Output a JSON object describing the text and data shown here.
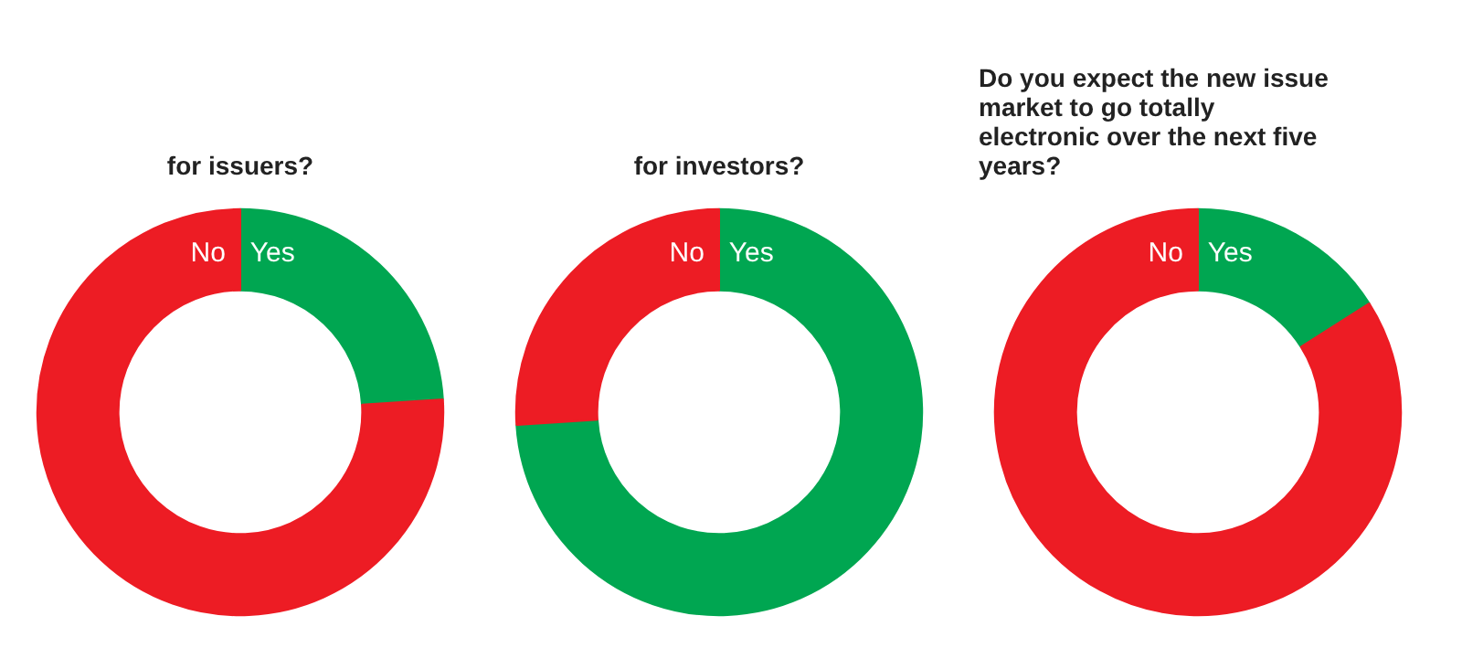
{
  "chart_data": [
    {
      "type": "donut",
      "title": "for issuers?",
      "categories": [
        "Yes",
        "No"
      ],
      "values": [
        24,
        76
      ],
      "colors": [
        "#00a651",
        "#ed1c24"
      ]
    },
    {
      "type": "donut",
      "title": "for investors?",
      "categories": [
        "Yes",
        "No"
      ],
      "values": [
        74,
        26
      ],
      "colors": [
        "#00a651",
        "#ed1c24"
      ]
    },
    {
      "type": "donut",
      "title": "Do you expect the new issue market to go totally electronic over the next five years?",
      "categories": [
        "Yes",
        "No"
      ],
      "values": [
        16,
        84
      ],
      "colors": [
        "#00a651",
        "#ed1c24"
      ]
    }
  ]
}
